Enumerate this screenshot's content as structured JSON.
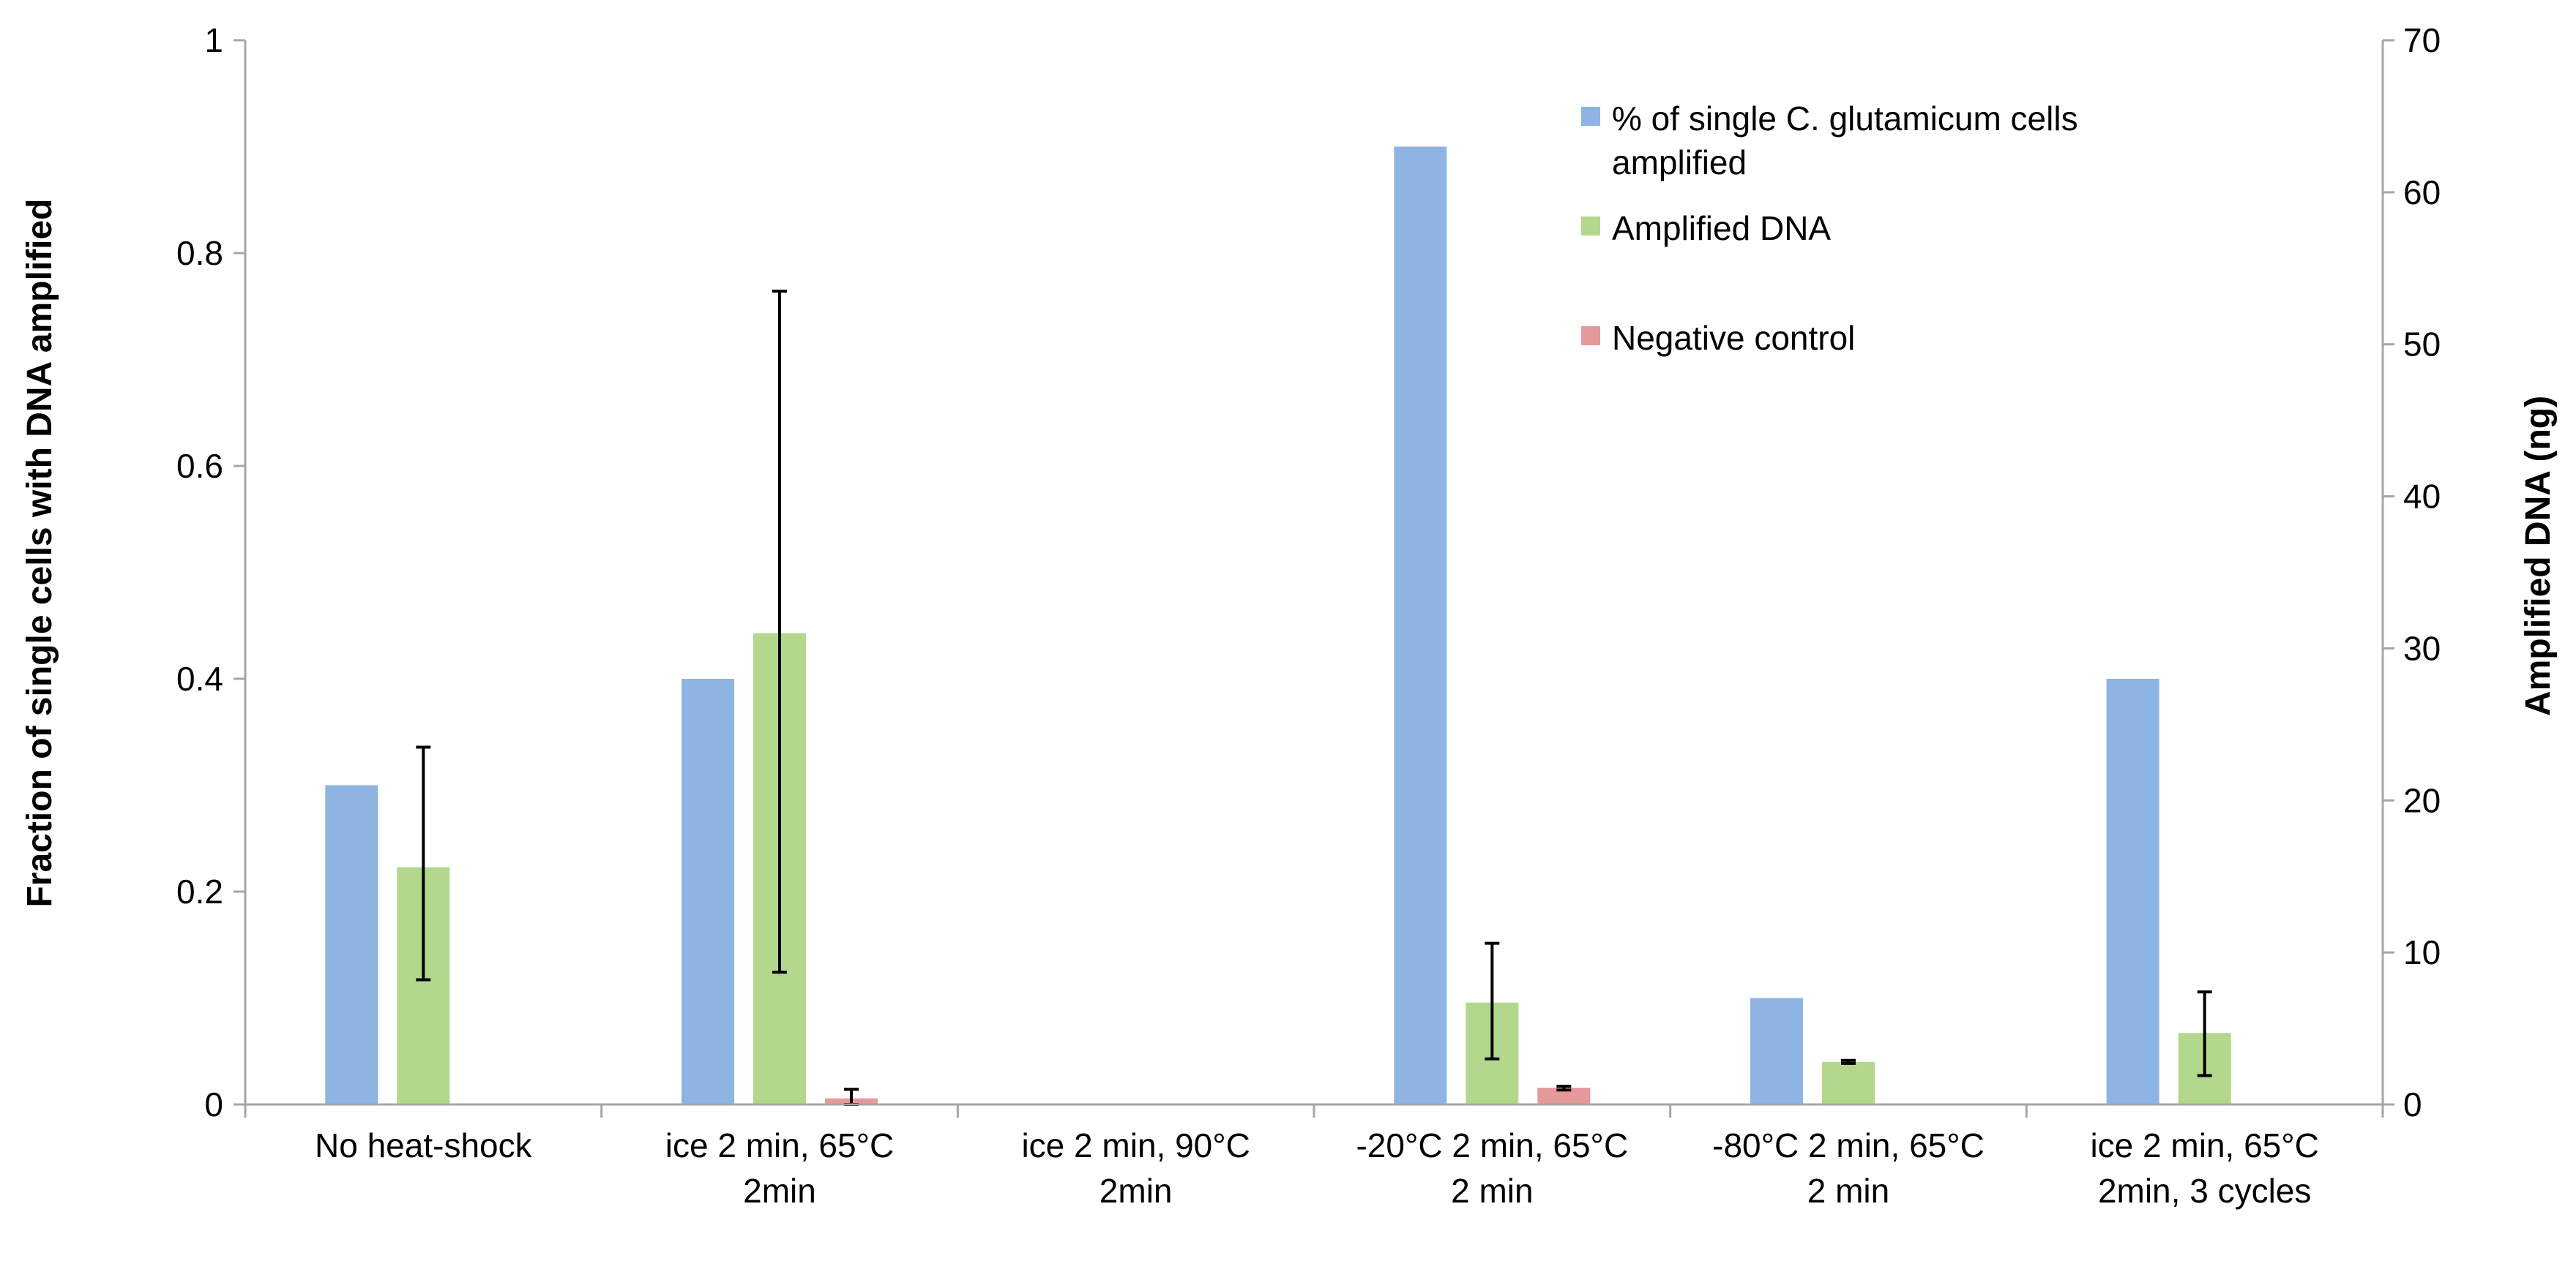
{
  "chart_data": {
    "type": "bar",
    "title": "",
    "xlabel": "",
    "ylabel": "Fraction of single cells with DNA amplified",
    "y2label": "Amplified DNA (ng)",
    "ylim": [
      0,
      1
    ],
    "y2lim": [
      0,
      70
    ],
    "y_ticks": [
      "0",
      "0.2",
      "0.4",
      "0.6",
      "0.8",
      "1"
    ],
    "y_tick_values": [
      0,
      0.2,
      0.4,
      0.6,
      0.8,
      1
    ],
    "y2_ticks": [
      "0",
      "10",
      "20",
      "30",
      "40",
      "50",
      "60",
      "70"
    ],
    "y2_tick_values": [
      0,
      10,
      20,
      30,
      40,
      50,
      60,
      70
    ],
    "grid": false,
    "legend_position": "top-right",
    "categories": [
      [
        "No heat-shock"
      ],
      [
        "ice 2 min, 65°C",
        "2min"
      ],
      [
        "ice 2 min, 90°C",
        "2min"
      ],
      [
        "-20°C 2 min, 65°C",
        "2 min"
      ],
      [
        "-80°C 2 min, 65°C",
        "2 min"
      ],
      [
        "ice 2 min, 65°C",
        "2min, 3 cycles"
      ]
    ],
    "series": [
      {
        "name": "% of single C. glutamicum cells amplified",
        "legend_lines": [
          "% of single C. glutamicum cells",
          "amplified"
        ],
        "axis": "left",
        "color": "#8db4e2",
        "values": [
          0.3,
          0.4,
          0,
          0.9,
          0.1,
          0.4
        ],
        "errors": [
          null,
          null,
          null,
          null,
          null,
          null
        ]
      },
      {
        "name": "Amplified DNA",
        "legend_lines": [
          "Amplified DNA"
        ],
        "axis": "right",
        "color": "#b3d88c",
        "values": [
          15.6,
          31,
          0,
          6.7,
          2.8,
          4.7
        ],
        "errors": [
          [
            8.2,
            23.5
          ],
          [
            8.7,
            53.5
          ],
          null,
          [
            3,
            10.6
          ],
          [
            2.7,
            2.9
          ],
          [
            1.9,
            7.4
          ]
        ]
      },
      {
        "name": "Negative control",
        "legend_lines": [
          "Negative control"
        ],
        "axis": "right",
        "color": "#e6999a",
        "values": [
          0,
          0.4,
          0,
          1.1,
          0,
          0
        ],
        "errors": [
          null,
          [
            0,
            1
          ],
          null,
          [
            0.95,
            1.2
          ],
          null,
          null
        ]
      }
    ]
  }
}
